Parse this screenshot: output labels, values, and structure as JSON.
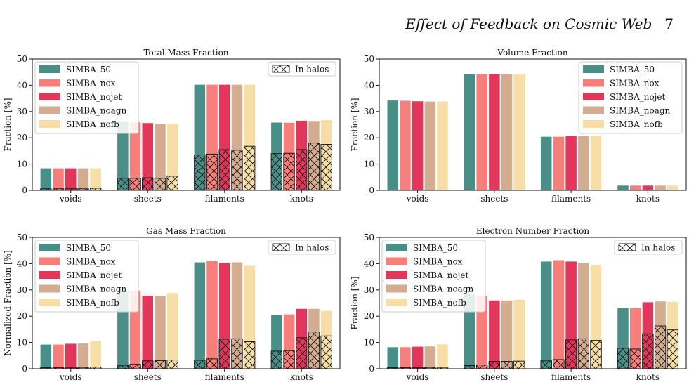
{
  "header": {
    "title": "Effect of Feedback on Cosmic Web",
    "page_number": "7"
  },
  "legend_labels": [
    "SIMBA_50",
    "SIMBA_nox",
    "SIMBA_nojet",
    "SIMBA_noagn",
    "SIMBA_nofb"
  ],
  "halo_legend_label": "In halos",
  "series_colors": [
    "#4a8f87",
    "#f77f7b",
    "#e4365a",
    "#d4ad91",
    "#f6dea6"
  ],
  "chart_data": [
    {
      "type": "bar",
      "title": "Total Mass Fraction",
      "xlabel": "",
      "ylabel": "Fraction [%]",
      "ylim": [
        0,
        50
      ],
      "yticks": [
        0,
        10,
        20,
        30,
        40,
        50
      ],
      "categories": [
        "voids",
        "sheets",
        "filaments",
        "knots"
      ],
      "legend_position": "top-left",
      "halo_legend": true,
      "series": [
        {
          "name": "SIMBA_50",
          "values": [
            8.4,
            26.3,
            40.2,
            25.8
          ],
          "halo_values": [
            0.6,
            4.6,
            13.5,
            14.0
          ]
        },
        {
          "name": "SIMBA_nox",
          "values": [
            8.4,
            25.9,
            40.2,
            25.7
          ],
          "halo_values": [
            0.6,
            4.6,
            13.8,
            14.1
          ]
        },
        {
          "name": "SIMBA_nojet",
          "values": [
            8.4,
            25.6,
            40.2,
            26.5
          ],
          "halo_values": [
            0.6,
            4.8,
            15.5,
            15.5
          ]
        },
        {
          "name": "SIMBA_noagn",
          "values": [
            8.4,
            25.4,
            40.2,
            26.4
          ],
          "halo_values": [
            0.6,
            4.6,
            15.3,
            18.0
          ]
        },
        {
          "name": "SIMBA_nofb",
          "values": [
            8.4,
            25.3,
            40.2,
            26.7
          ],
          "halo_values": [
            0.8,
            5.4,
            16.8,
            17.5
          ]
        }
      ]
    },
    {
      "type": "bar",
      "title": "Volume Fraction",
      "xlabel": "",
      "ylabel": "Fraction [%]",
      "ylim": [
        0,
        50
      ],
      "yticks": [
        0,
        10,
        20,
        30,
        40,
        50
      ],
      "categories": [
        "voids",
        "sheets",
        "filaments",
        "knots"
      ],
      "legend_position": "top-right",
      "halo_legend": false,
      "series": [
        {
          "name": "SIMBA_50",
          "values": [
            34.2,
            44.2,
            20.4,
            1.8
          ]
        },
        {
          "name": "SIMBA_nox",
          "values": [
            34.1,
            44.2,
            20.4,
            1.8
          ]
        },
        {
          "name": "SIMBA_nojet",
          "values": [
            33.9,
            44.2,
            20.6,
            1.8
          ]
        },
        {
          "name": "SIMBA_noagn",
          "values": [
            33.8,
            44.2,
            20.6,
            1.8
          ]
        },
        {
          "name": "SIMBA_nofb",
          "values": [
            33.8,
            44.2,
            20.8,
            1.8
          ]
        }
      ]
    },
    {
      "type": "bar",
      "title": "Gas Mass Fraction",
      "xlabel": "",
      "ylabel": "Normalized Fraction [%]",
      "ylim": [
        0,
        50
      ],
      "yticks": [
        0,
        10,
        20,
        30,
        40,
        50
      ],
      "categories": [
        "voids",
        "sheets",
        "filaments",
        "knots"
      ],
      "legend_position": "top-left",
      "halo_legend": true,
      "series": [
        {
          "name": "SIMBA_50",
          "values": [
            9.2,
            30.0,
            40.5,
            20.5
          ],
          "halo_values": [
            0.4,
            1.3,
            3.2,
            6.7
          ]
        },
        {
          "name": "SIMBA_nox",
          "values": [
            9.2,
            29.7,
            41.0,
            20.7
          ],
          "halo_values": [
            0.4,
            1.7,
            3.8,
            6.9
          ]
        },
        {
          "name": "SIMBA_nojet",
          "values": [
            9.5,
            27.8,
            40.3,
            22.8
          ],
          "halo_values": [
            0.5,
            3.0,
            11.3,
            11.8
          ]
        },
        {
          "name": "SIMBA_noagn",
          "values": [
            9.6,
            27.7,
            40.5,
            22.8
          ],
          "halo_values": [
            0.5,
            3.1,
            11.4,
            14.0
          ]
        },
        {
          "name": "SIMBA_nofb",
          "values": [
            10.5,
            28.8,
            39.2,
            22.0
          ],
          "halo_values": [
            0.6,
            3.3,
            10.3,
            12.5
          ]
        }
      ]
    },
    {
      "type": "bar",
      "title": "Electron Number Fraction",
      "xlabel": "",
      "ylabel": "Fraction [%]",
      "ylim": [
        0,
        50
      ],
      "yticks": [
        0,
        10,
        20,
        30,
        40,
        50
      ],
      "categories": [
        "voids",
        "sheets",
        "filaments",
        "knots"
      ],
      "legend_position": "top-left",
      "halo_legend": true,
      "series": [
        {
          "name": "SIMBA_50",
          "values": [
            8.2,
            28.3,
            40.8,
            23.0
          ],
          "halo_values": [
            0.4,
            1.2,
            3.0,
            7.8
          ]
        },
        {
          "name": "SIMBA_nox",
          "values": [
            8.2,
            27.8,
            41.3,
            23.0
          ],
          "halo_values": [
            0.4,
            1.4,
            3.5,
            7.5
          ]
        },
        {
          "name": "SIMBA_nojet",
          "values": [
            8.4,
            26.0,
            40.8,
            25.3
          ],
          "halo_values": [
            0.4,
            2.8,
            11.0,
            13.3
          ]
        },
        {
          "name": "SIMBA_noagn",
          "values": [
            8.5,
            26.0,
            40.3,
            25.6
          ],
          "halo_values": [
            0.5,
            2.8,
            11.4,
            16.3
          ]
        },
        {
          "name": "SIMBA_nofb",
          "values": [
            9.3,
            26.2,
            39.5,
            25.4
          ],
          "halo_values": [
            0.5,
            2.9,
            10.8,
            14.8
          ]
        }
      ]
    }
  ]
}
